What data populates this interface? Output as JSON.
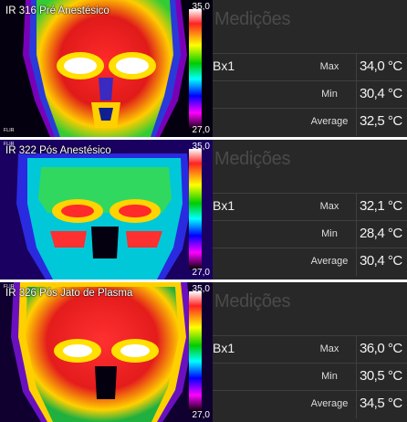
{
  "colorbar": {
    "colors": [
      "#ffffff",
      "#ff2222",
      "#ffff00",
      "#00cc00",
      "#00ffff",
      "#0000ff",
      "#ff00ff",
      "#000000"
    ]
  },
  "panels": [
    {
      "image": {
        "caption": "IR 316 Pré Anestésico",
        "scale_max": "35,0",
        "scale_min": "27,0",
        "tiny_label": "FLIR"
      },
      "measurements": {
        "title": "Medições",
        "region": "Bx1",
        "rows": [
          {
            "label": "Max",
            "value": "34,0 °C"
          },
          {
            "label": "Min",
            "value": "30,4 °C"
          },
          {
            "label": "Average",
            "value": "32,5 °C"
          }
        ]
      }
    },
    {
      "image": {
        "caption": "IR 322 Pós  Anestésico",
        "scale_max": "35,0",
        "scale_min": "27,0",
        "tiny_label": "FLIR"
      },
      "measurements": {
        "title": "Medições",
        "region": "Bx1",
        "rows": [
          {
            "label": "Max",
            "value": "32,1 °C"
          },
          {
            "label": "Min",
            "value": "28,4 °C"
          },
          {
            "label": "Average",
            "value": "30,4 °C"
          }
        ]
      }
    },
    {
      "image": {
        "caption": "IR 326 Pós  Jato de Plasma",
        "scale_max": "35,0",
        "scale_min": "27,0",
        "tiny_label": "FLIR"
      },
      "measurements": {
        "title": "Medições",
        "region": "Bx1",
        "rows": [
          {
            "label": "Max",
            "value": "36,0 °C"
          },
          {
            "label": "Min",
            "value": "30,5 °C"
          },
          {
            "label": "Average",
            "value": "34,5 °C"
          }
        ]
      }
    }
  ]
}
